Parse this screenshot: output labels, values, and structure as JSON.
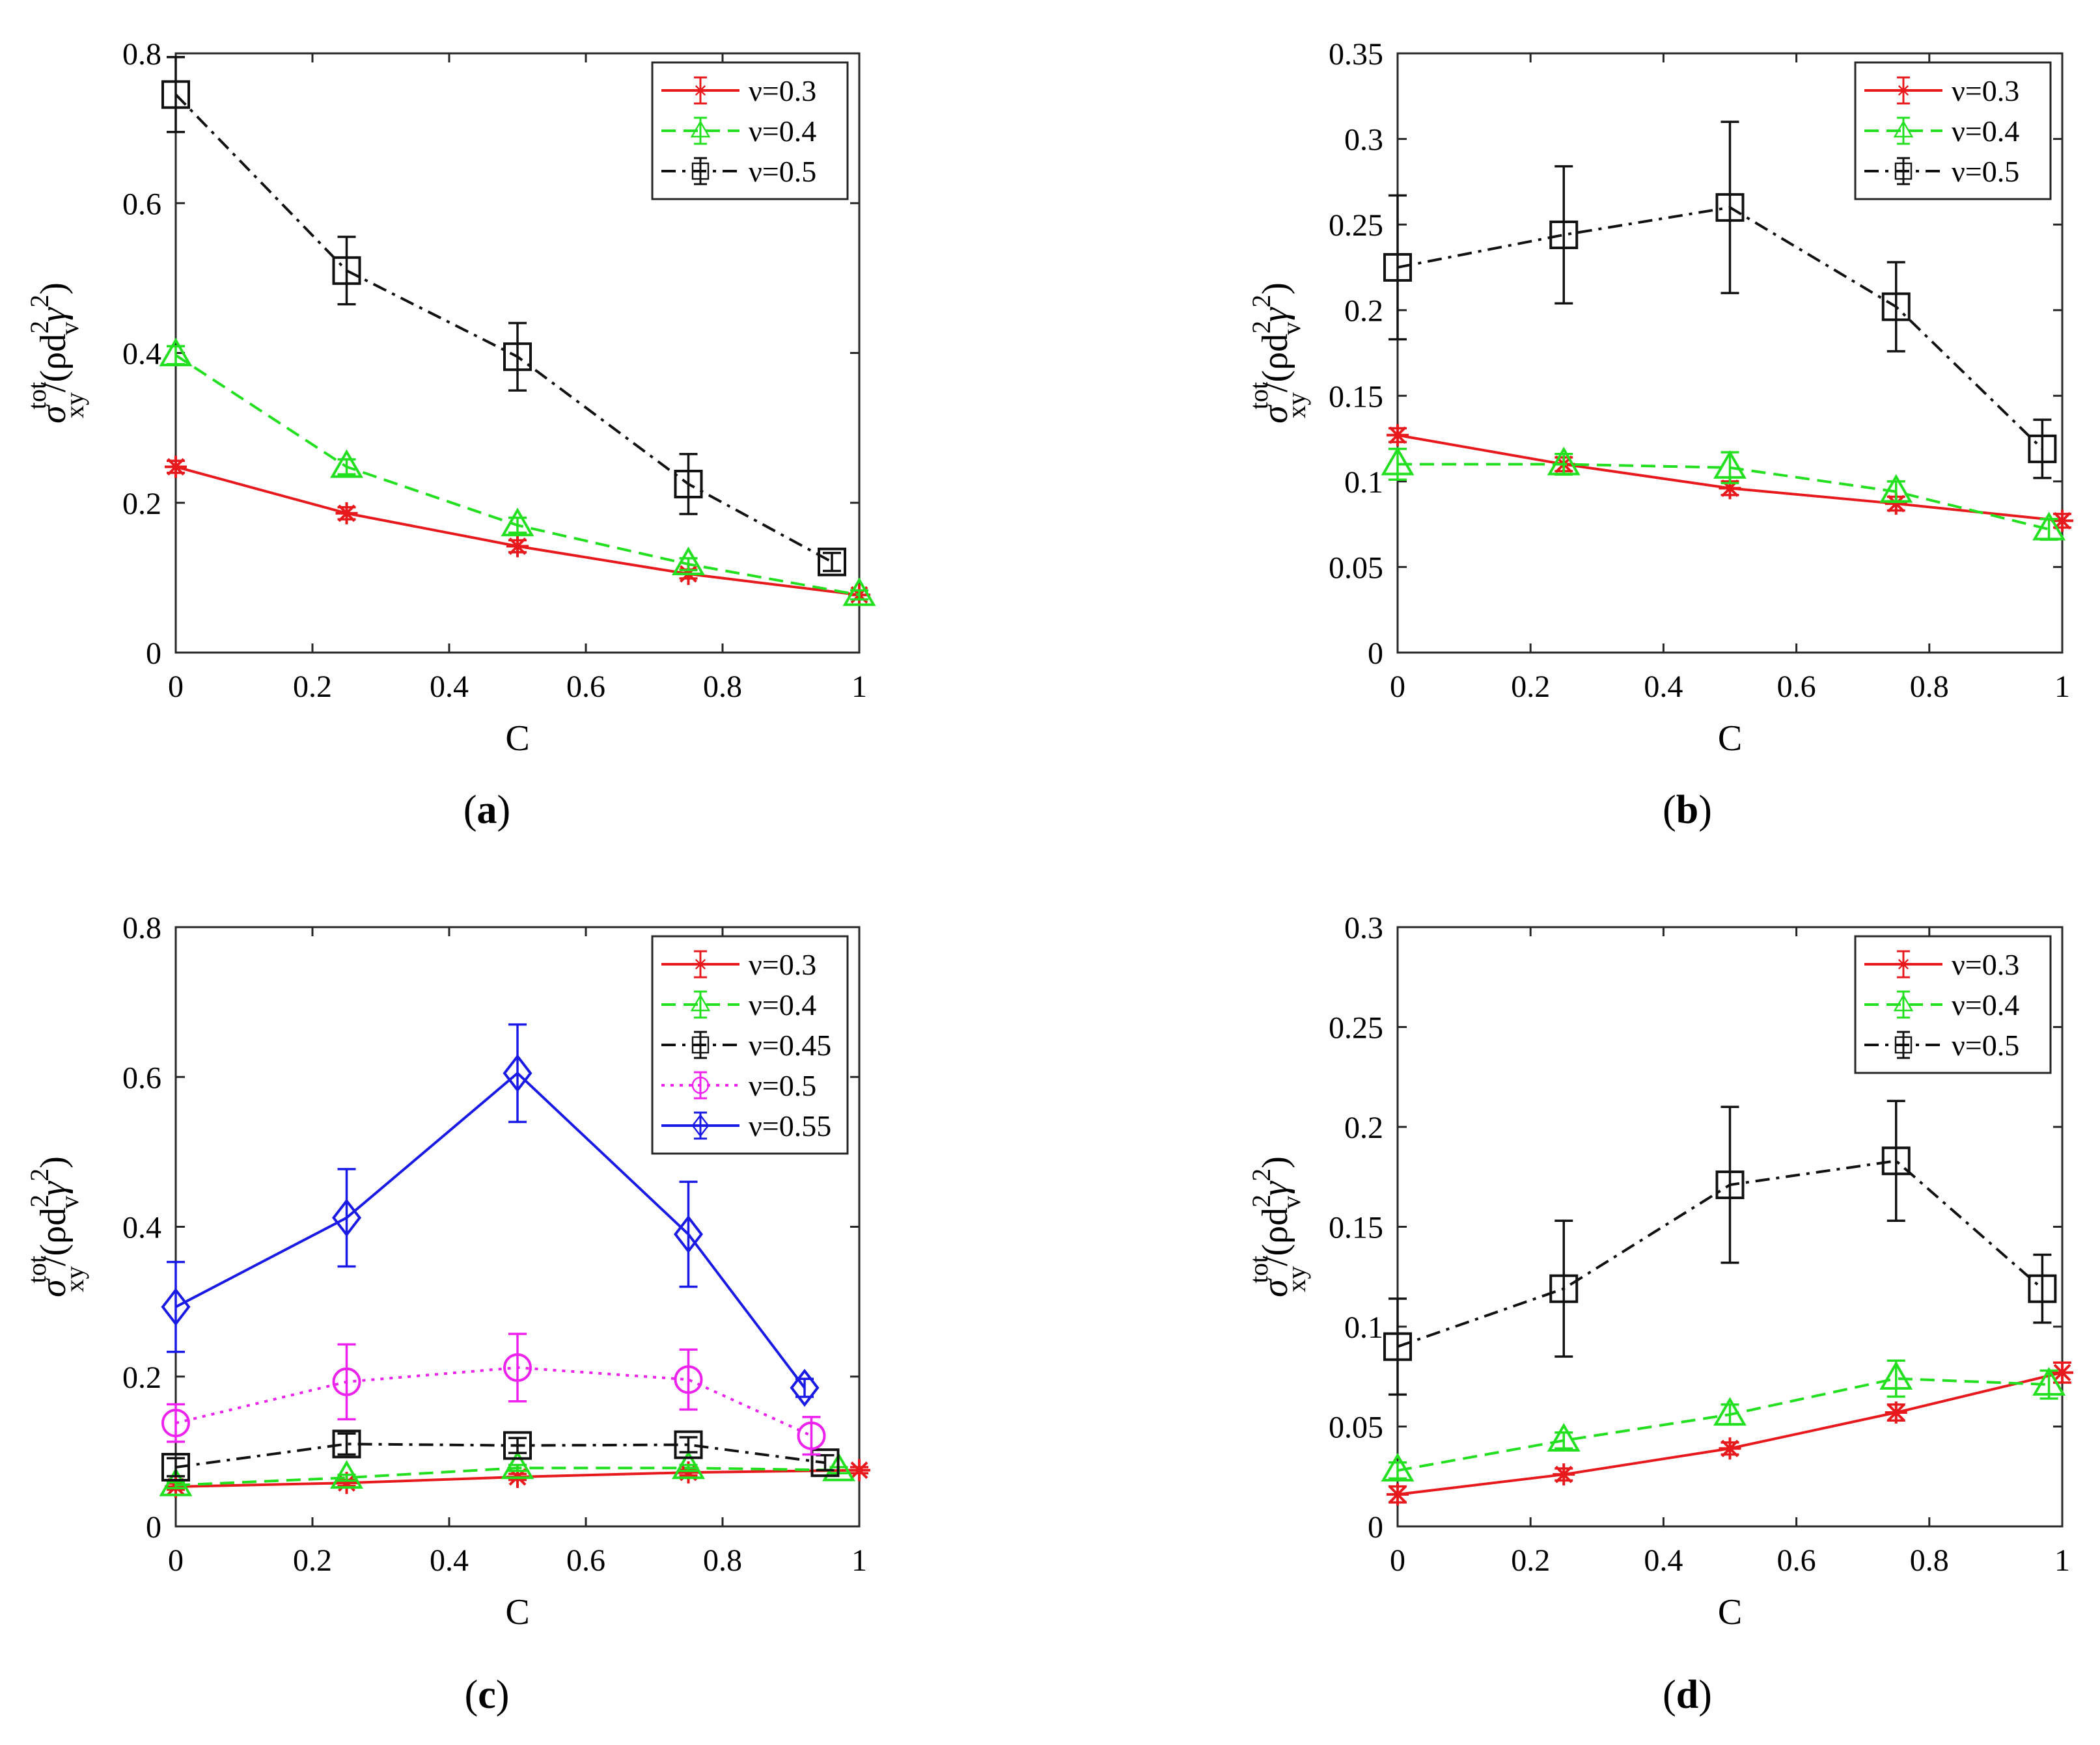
{
  "figure": {
    "charts": [
      {
        "id": "a",
        "caption_letter": "a",
        "type": "line",
        "xlabel": "C",
        "ylabel_sigma": "σ",
        "ylabel_sup": "tot",
        "ylabel_sub": "xy",
        "ylabel_rest_pre": "/(ρd",
        "ylabel_rest_sub": "v",
        "ylabel_sup2": "2",
        "ylabel_gamma": "γ",
        "ylabel_sup3": "2",
        "ylabel_close": ")",
        "xlim": [
          0,
          1
        ],
        "ylim": [
          0,
          0.8
        ],
        "xticks": [
          "0",
          "0.2",
          "0.4",
          "0.6",
          "0.8",
          "1"
        ],
        "yticks": [
          "0",
          "0.2",
          "0.4",
          "0.6",
          "0.8"
        ],
        "legend_pos": "top-right",
        "series": [
          {
            "name": "ν=0.3",
            "color": "#e8191c",
            "dash": "solid",
            "marker": "star",
            "x": [
              0,
              0.25,
              0.5,
              0.75,
              1.0
            ],
            "y": [
              0.248,
              0.186,
              0.142,
              0.105,
              0.077
            ],
            "err": [
              0.008,
              0.008,
              0.008,
              0.006,
              0.006
            ]
          },
          {
            "name": "ν=0.4",
            "color": "#22e01f",
            "dash": "dashed",
            "marker": "triangle",
            "x": [
              0,
              0.25,
              0.5,
              0.75,
              1.0
            ],
            "y": [
              0.397,
              0.248,
              0.17,
              0.118,
              0.077
            ],
            "err": [
              0.012,
              0.01,
              0.01,
              0.008,
              0.006
            ]
          },
          {
            "name": "ν=0.5",
            "color": "#111111",
            "dash": "dashdot",
            "marker": "square",
            "x": [
              0,
              0.25,
              0.5,
              0.75,
              0.96
            ],
            "y": [
              0.745,
              0.51,
              0.395,
              0.225,
              0.121
            ],
            "err": [
              0.05,
              0.045,
              0.045,
              0.04,
              0.012
            ]
          }
        ]
      },
      {
        "id": "b",
        "caption_letter": "b",
        "type": "line",
        "xlabel": "C",
        "ylabel_sigma": "σ",
        "ylabel_sup": "tot",
        "ylabel_sub": "xy",
        "ylabel_rest_pre": "/(ρd",
        "ylabel_rest_sub": "v",
        "ylabel_sup2": "2",
        "ylabel_gamma": "γ",
        "ylabel_sup3": "2",
        "ylabel_close": ")",
        "xlim": [
          0,
          1
        ],
        "ylim": [
          0,
          0.35
        ],
        "xticks": [
          "0",
          "0.2",
          "0.4",
          "0.6",
          "0.8",
          "1"
        ],
        "yticks": [
          "0",
          "0.05",
          "0.1",
          "0.15",
          "0.2",
          "0.25",
          "0.3",
          "0.35"
        ],
        "legend_pos": "top-right",
        "series": [
          {
            "name": "ν=0.3",
            "color": "#e8191c",
            "dash": "solid",
            "marker": "star",
            "x": [
              0,
              0.25,
              0.5,
              0.75,
              1.0
            ],
            "y": [
              0.127,
              0.11,
              0.096,
              0.087,
              0.077
            ],
            "err": [
              0.004,
              0.004,
              0.004,
              0.004,
              0.004
            ]
          },
          {
            "name": "ν=0.4",
            "color": "#22e01f",
            "dash": "dashed",
            "marker": "triangle",
            "x": [
              0,
              0.25,
              0.5,
              0.75,
              0.98
            ],
            "y": [
              0.11,
              0.11,
              0.108,
              0.094,
              0.072
            ],
            "err": [
              0.009,
              0.006,
              0.009,
              0.006,
              0.006
            ]
          },
          {
            "name": "ν=0.5",
            "color": "#111111",
            "dash": "dashdot",
            "marker": "square",
            "x": [
              0,
              0.25,
              0.5,
              0.75,
              0.97
            ],
            "y": [
              0.225,
              0.244,
              0.26,
              0.202,
              0.119
            ],
            "err": [
              0.042,
              0.04,
              0.05,
              0.026,
              0.017
            ]
          }
        ]
      },
      {
        "id": "c",
        "caption_letter": "c",
        "type": "line",
        "xlabel": "C",
        "ylabel_sigma": "σ",
        "ylabel_sup": "tot",
        "ylabel_sub": "xy",
        "ylabel_rest_pre": "/(ρd",
        "ylabel_rest_sub": "v",
        "ylabel_sup2": "2",
        "ylabel_gamma": "γ",
        "ylabel_sup3": "2",
        "ylabel_close": ")",
        "xlim": [
          0,
          1
        ],
        "ylim": [
          0,
          0.8
        ],
        "xticks": [
          "0",
          "0.2",
          "0.4",
          "0.6",
          "0.8",
          "1"
        ],
        "yticks": [
          "0",
          "0.2",
          "0.4",
          "0.6",
          "0.8"
        ],
        "legend_pos": "top-right",
        "series": [
          {
            "name": "ν=0.3",
            "color": "#e8191c",
            "dash": "solid",
            "marker": "star",
            "x": [
              0,
              0.25,
              0.5,
              0.75,
              1.0
            ],
            "y": [
              0.053,
              0.058,
              0.066,
              0.072,
              0.075
            ],
            "err": [
              0.004,
              0.004,
              0.004,
              0.004,
              0.004
            ]
          },
          {
            "name": "ν=0.4",
            "color": "#22e01f",
            "dash": "dashed",
            "marker": "triangle",
            "x": [
              0,
              0.25,
              0.5,
              0.75,
              0.97
            ],
            "y": [
              0.055,
              0.065,
              0.078,
              0.078,
              0.075
            ],
            "err": [
              0.004,
              0.004,
              0.004,
              0.004,
              0.004
            ]
          },
          {
            "name": "ν=0.45",
            "color": "#111111",
            "dash": "dashdot",
            "marker": "square",
            "x": [
              0,
              0.25,
              0.5,
              0.75,
              0.95
            ],
            "y": [
              0.079,
              0.11,
              0.108,
              0.109,
              0.085
            ],
            "err": [
              0.012,
              0.014,
              0.01,
              0.01,
              0.01
            ]
          },
          {
            "name": "ν=0.5",
            "color": "#ee22ee",
            "dash": "dotted",
            "marker": "circle",
            "x": [
              0,
              0.25,
              0.5,
              0.75,
              0.93
            ],
            "y": [
              0.138,
              0.193,
              0.212,
              0.196,
              0.121
            ],
            "err": [
              0.025,
              0.05,
              0.045,
              0.04,
              0.025
            ]
          },
          {
            "name": "ν=0.55",
            "color": "#1a1ae6",
            "dash": "solid",
            "marker": "diamond",
            "x": [
              0,
              0.25,
              0.5,
              0.75,
              0.92
            ],
            "y": [
              0.293,
              0.412,
              0.605,
              0.39,
              0.185
            ],
            "err": [
              0.06,
              0.065,
              0.065,
              0.07,
              0.012
            ]
          }
        ]
      },
      {
        "id": "d",
        "caption_letter": "d",
        "type": "line",
        "xlabel": "C",
        "ylabel_sigma": "σ",
        "ylabel_sup": "tot",
        "ylabel_sub": "xy",
        "ylabel_rest_pre": "/(ρd",
        "ylabel_rest_sub": "v",
        "ylabel_sup2": "2",
        "ylabel_gamma": "γ",
        "ylabel_sup3": "2",
        "ylabel_close": ")",
        "xlim": [
          0,
          1
        ],
        "ylim": [
          0,
          0.3
        ],
        "xticks": [
          "0",
          "0.2",
          "0.4",
          "0.6",
          "0.8",
          "1"
        ],
        "yticks": [
          "0",
          "0.05",
          "0.1",
          "0.15",
          "0.2",
          "0.25",
          "0.3"
        ],
        "legend_pos": "top-right",
        "series": [
          {
            "name": "ν=0.3",
            "color": "#e8191c",
            "dash": "solid",
            "marker": "star",
            "x": [
              0,
              0.25,
              0.5,
              0.75,
              1.0
            ],
            "y": [
              0.016,
              0.026,
              0.039,
              0.057,
              0.077
            ],
            "err": [
              0.004,
              0.003,
              0.003,
              0.004,
              0.005
            ]
          },
          {
            "name": "ν=0.4",
            "color": "#22e01f",
            "dash": "dashed",
            "marker": "triangle",
            "x": [
              0,
              0.25,
              0.5,
              0.75,
              0.98
            ],
            "y": [
              0.028,
              0.043,
              0.056,
              0.074,
              0.071
            ],
            "err": [
              0.004,
              0.004,
              0.005,
              0.009,
              0.007
            ]
          },
          {
            "name": "ν=0.5",
            "color": "#111111",
            "dash": "dashdot",
            "marker": "square",
            "x": [
              0,
              0.25,
              0.5,
              0.75,
              0.97
            ],
            "y": [
              0.09,
              0.119,
              0.171,
              0.183,
              0.119
            ],
            "err": [
              0.024,
              0.034,
              0.039,
              0.03,
              0.017
            ]
          }
        ]
      }
    ]
  }
}
